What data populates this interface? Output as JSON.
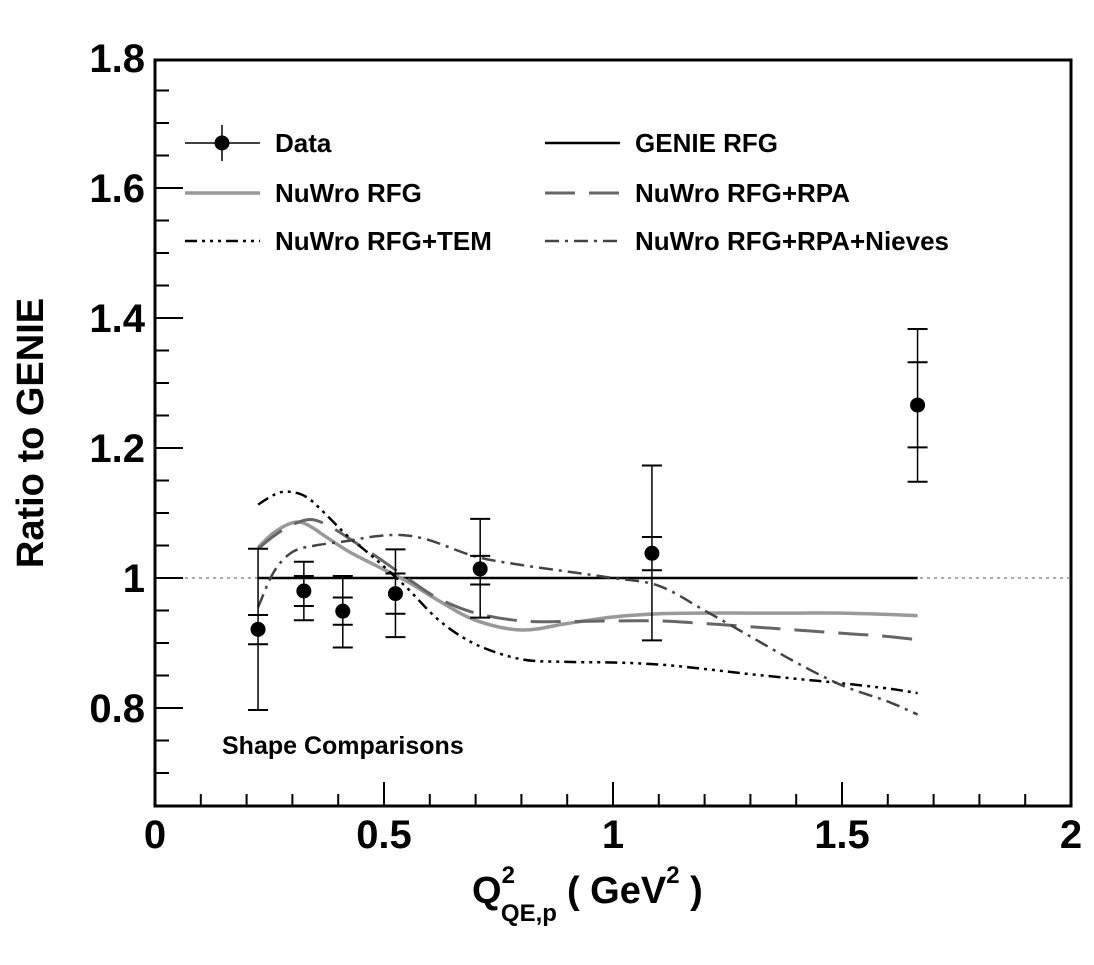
{
  "chart_data": {
    "type": "line",
    "title": "",
    "xlabel": {
      "main": "Q",
      "sup": "2",
      "sub": "QE,p",
      "unit_open": "( GeV",
      "unit_sup": "2",
      "unit_close": " )"
    },
    "ylabel": "Ratio to GENIE",
    "xlim": [
      0,
      2
    ],
    "ylim": [
      0.65,
      1.8
    ],
    "x_ticks": [
      {
        "value": 0,
        "label": "0"
      },
      {
        "value": 0.5,
        "label": "0.5"
      },
      {
        "value": 1,
        "label": "1"
      },
      {
        "value": 1.5,
        "label": "1.5"
      },
      {
        "value": 2,
        "label": "2"
      }
    ],
    "y_ticks": [
      {
        "value": 0.8,
        "label": "0.8"
      },
      {
        "value": 1.0,
        "label": "1"
      },
      {
        "value": 1.2,
        "label": "1.2"
      },
      {
        "value": 1.4,
        "label": "1.4"
      },
      {
        "value": 1.6,
        "label": "1.6"
      },
      {
        "value": 1.8,
        "label": "1.8"
      }
    ],
    "reference_line": {
      "y": 1.0,
      "style": "dotted",
      "color": "#aaaaaa"
    },
    "legend_position": "top",
    "annotation": "Shape Comparisons",
    "data_series": {
      "name": "Data",
      "points": [
        {
          "x": 0.225,
          "y": 0.921,
          "stat_lo": 0.898,
          "stat_hi": 0.943,
          "tot_lo": 0.797,
          "tot_hi": 1.045
        },
        {
          "x": 0.325,
          "y": 0.98,
          "stat_lo": 0.957,
          "stat_hi": 1.003,
          "tot_lo": 0.935,
          "tot_hi": 1.025
        },
        {
          "x": 0.41,
          "y": 0.949,
          "stat_lo": 0.928,
          "stat_hi": 0.97,
          "tot_lo": 0.893,
          "tot_hi": 1.003
        },
        {
          "x": 0.525,
          "y": 0.976,
          "stat_lo": 0.945,
          "stat_hi": 1.007,
          "tot_lo": 0.909,
          "tot_hi": 1.044
        },
        {
          "x": 0.71,
          "y": 1.014,
          "stat_lo": 0.99,
          "stat_hi": 1.034,
          "tot_lo": 0.939,
          "tot_hi": 1.091
        },
        {
          "x": 1.085,
          "y": 1.038,
          "stat_lo": 1.012,
          "stat_hi": 1.063,
          "tot_lo": 0.904,
          "tot_hi": 1.173
        },
        {
          "x": 1.665,
          "y": 1.266,
          "stat_lo": 1.201,
          "stat_hi": 1.332,
          "tot_lo": 1.148,
          "tot_hi": 1.383
        }
      ]
    },
    "series": [
      {
        "name": "GENIE RFG",
        "color": "#000000",
        "dash": "",
        "width": 2.5,
        "x": [
          0.225,
          1.665
        ],
        "y": [
          1.0,
          1.0
        ]
      },
      {
        "name": "NuWro RFG",
        "color": "#999999",
        "dash": "",
        "width": 3.5,
        "x": [
          0.225,
          0.26,
          0.3,
          0.33,
          0.37,
          0.42,
          0.48,
          0.55,
          0.62,
          0.7,
          0.8,
          0.9,
          1.0,
          1.1,
          1.2,
          1.3,
          1.4,
          1.5,
          1.6,
          1.665
        ],
        "y": [
          1.047,
          1.07,
          1.085,
          1.083,
          1.065,
          1.042,
          1.02,
          0.995,
          0.965,
          0.935,
          0.92,
          0.93,
          0.94,
          0.945,
          0.946,
          0.946,
          0.946,
          0.946,
          0.944,
          0.942
        ]
      },
      {
        "name": "NuWro RFG+RPA",
        "color": "#666666",
        "dash": "30,14",
        "width": 3,
        "x": [
          0.225,
          0.26,
          0.3,
          0.34,
          0.38,
          0.43,
          0.5,
          0.56,
          0.62,
          0.7,
          0.8,
          0.9,
          1.0,
          1.1,
          1.2,
          1.3,
          1.4,
          1.5,
          1.6,
          1.665
        ],
        "y": [
          1.045,
          1.065,
          1.082,
          1.09,
          1.08,
          1.058,
          1.025,
          0.995,
          0.968,
          0.946,
          0.934,
          0.933,
          0.934,
          0.934,
          0.93,
          0.925,
          0.92,
          0.915,
          0.91,
          0.905
        ]
      },
      {
        "name": "NuWro RFG+TEM",
        "color": "#000000",
        "dash": "12,5,3,5,3,5,3,5",
        "width": 2.5,
        "x": [
          0.225,
          0.26,
          0.29,
          0.33,
          0.37,
          0.42,
          0.48,
          0.55,
          0.62,
          0.7,
          0.8,
          0.9,
          1.0,
          1.1,
          1.2,
          1.3,
          1.4,
          1.5,
          1.6,
          1.665
        ],
        "y": [
          1.113,
          1.128,
          1.133,
          1.125,
          1.1,
          1.065,
          1.03,
          0.985,
          0.935,
          0.898,
          0.875,
          0.871,
          0.87,
          0.867,
          0.86,
          0.852,
          0.845,
          0.838,
          0.83,
          0.823
        ]
      },
      {
        "name": "NuWro RFG+RPA+Nieves",
        "color": "#444444",
        "dash": "14,6,3,6",
        "width": 2.5,
        "x": [
          0.225,
          0.26,
          0.3,
          0.35,
          0.42,
          0.48,
          0.54,
          0.6,
          0.7,
          0.8,
          0.9,
          1.0,
          1.1,
          1.2,
          1.3,
          1.4,
          1.5,
          1.6,
          1.665
        ],
        "y": [
          0.955,
          1.01,
          1.04,
          1.05,
          1.057,
          1.064,
          1.066,
          1.058,
          1.033,
          1.02,
          1.01,
          1.0,
          0.988,
          0.95,
          0.91,
          0.87,
          0.835,
          0.81,
          0.79
        ]
      }
    ]
  }
}
